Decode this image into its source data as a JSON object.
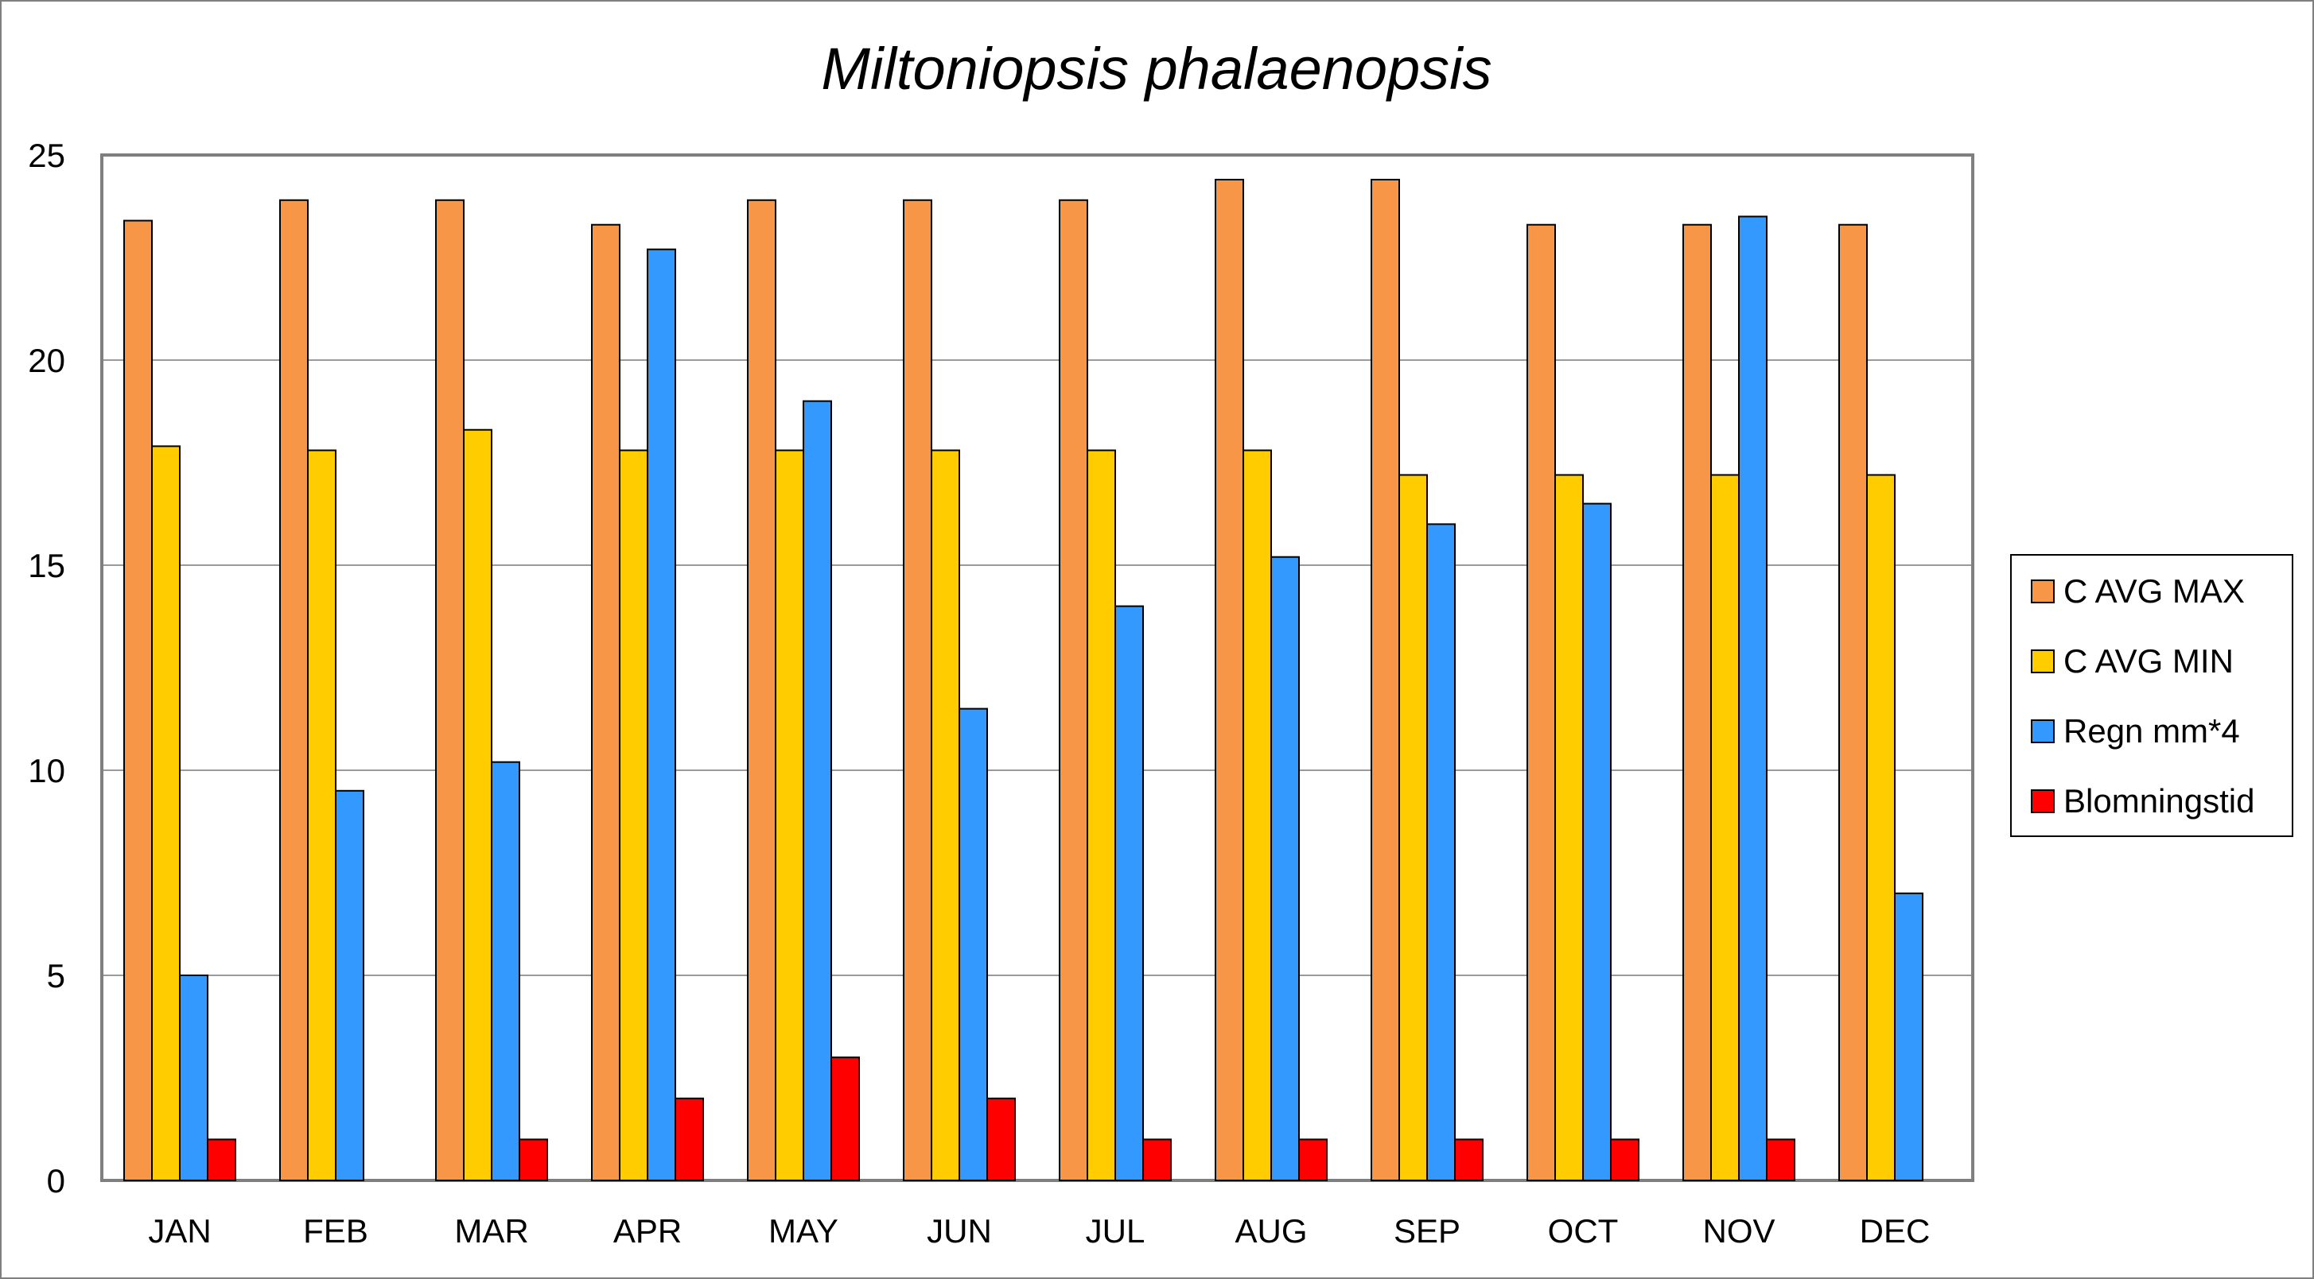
{
  "chart_data": {
    "type": "bar",
    "title": "Miltoniopsis phalaenopsis",
    "xlabel": "",
    "ylabel": "",
    "ylim": [
      0,
      25
    ],
    "yticks": [
      0,
      5,
      10,
      15,
      20,
      25
    ],
    "grid": true,
    "legend_position": "right",
    "categories": [
      "JAN",
      "FEB",
      "MAR",
      "APR",
      "MAY",
      "JUN",
      "JUL",
      "AUG",
      "SEP",
      "OCT",
      "NOV",
      "DEC"
    ],
    "series": [
      {
        "name": "C AVG MAX",
        "color": "#f79646",
        "values": [
          23.4,
          23.9,
          23.9,
          23.3,
          23.9,
          23.9,
          23.9,
          24.4,
          24.4,
          23.3,
          23.3,
          23.3
        ]
      },
      {
        "name": "C AVG MIN",
        "color": "#ffcc00",
        "values": [
          17.9,
          17.8,
          18.3,
          17.8,
          17.8,
          17.8,
          17.8,
          17.8,
          17.2,
          17.2,
          17.2,
          17.2
        ]
      },
      {
        "name": "Regn mm*4",
        "color": "#3399ff",
        "values": [
          5.0,
          9.5,
          10.2,
          22.7,
          19.0,
          11.5,
          14.0,
          15.2,
          16.0,
          16.5,
          23.5,
          7.0
        ]
      },
      {
        "name": "Blomningstid",
        "color": "#ff0000",
        "values": [
          1,
          0,
          1,
          2,
          3,
          2,
          1,
          1,
          1,
          1,
          1,
          0
        ]
      }
    ]
  }
}
